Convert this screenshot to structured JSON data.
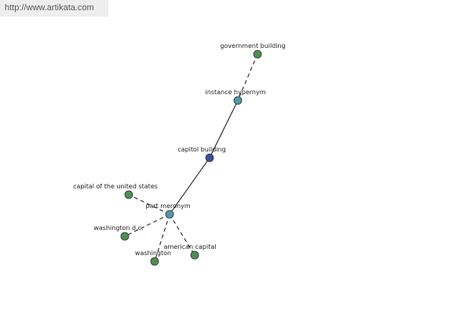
{
  "header": {
    "url": "http://www.artikata.com"
  },
  "nodes": [
    {
      "label": "government building"
    },
    {
      "label": "instance hypernym"
    },
    {
      "label": "capitol building"
    },
    {
      "label": "part meronym"
    },
    {
      "label": "capital of the united states"
    },
    {
      "label": "washington d.c."
    },
    {
      "label": "american capital"
    },
    {
      "label": "washington"
    }
  ]
}
